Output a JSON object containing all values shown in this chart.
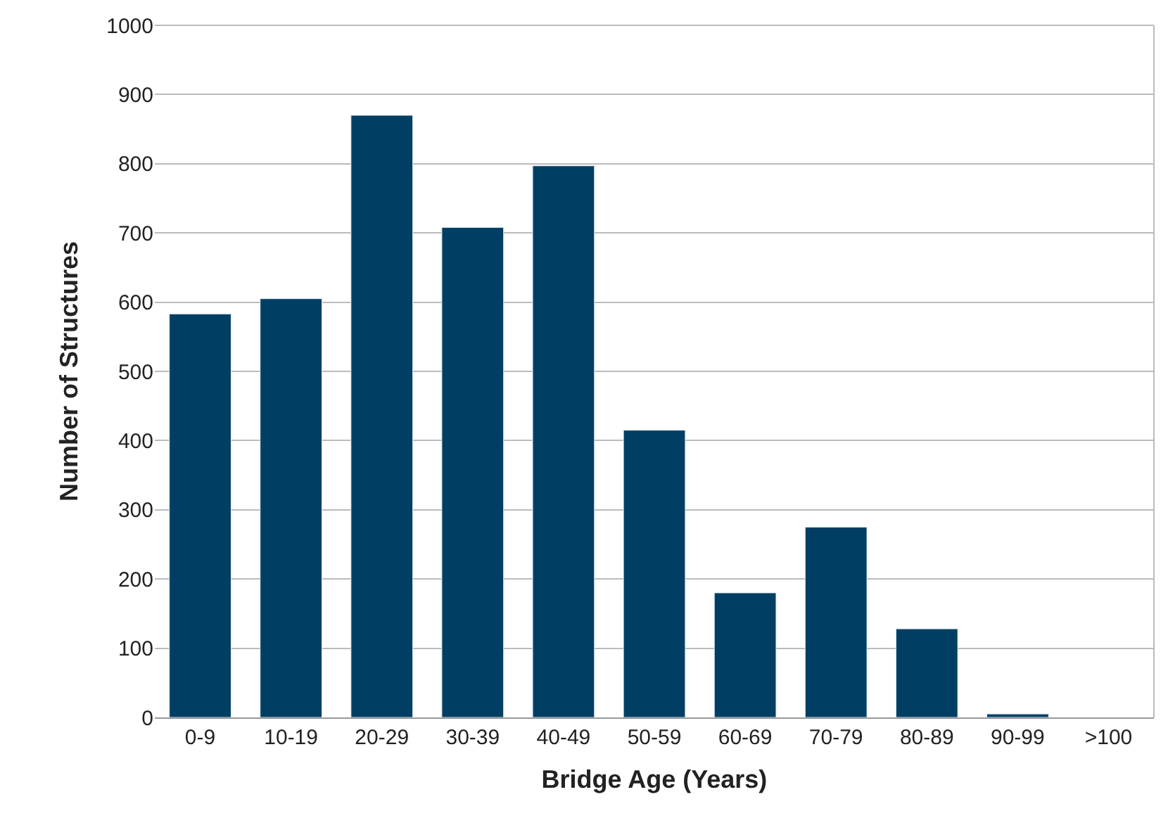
{
  "chart_data": {
    "type": "bar",
    "xlabel": "Bridge Age (Years)",
    "ylabel": "Number of Structures",
    "categories": [
      "0-9",
      "10-19",
      "20-29",
      "30-39",
      "40-49",
      "50-59",
      "60-69",
      "70-79",
      "80-89",
      "90-99",
      ">100"
    ],
    "values": [
      583,
      605,
      870,
      708,
      797,
      415,
      180,
      275,
      128,
      5,
      null
    ],
    "color": "#003f63",
    "ylim": [
      0,
      1000
    ],
    "yticks": [
      0,
      100,
      200,
      300,
      400,
      500,
      600,
      700,
      800,
      900,
      1000
    ],
    "grid": "y",
    "legend": false
  }
}
